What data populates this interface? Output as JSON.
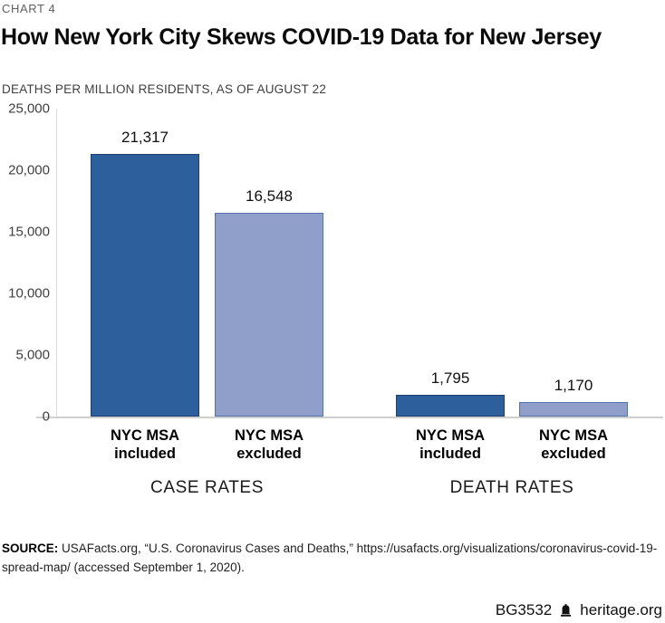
{
  "header": {
    "kicker": "CHART 4",
    "title": "How New York City Skews COVID-19 Data for New Jersey",
    "subtitle": "DEATHS PER MILLION RESIDENTS, AS OF AUGUST 22"
  },
  "chart_data": {
    "type": "bar",
    "title": "How New York City Skews COVID-19 Data for New Jersey",
    "subtitle": "DEATHS PER MILLION RESIDENTS, AS OF AUGUST 22",
    "ylim": [
      0,
      25000
    ],
    "grid": false,
    "legend": "none",
    "yticks": [
      {
        "value": 25000,
        "label": "25,000"
      },
      {
        "value": 20000,
        "label": "20,000"
      },
      {
        "value": 15000,
        "label": "15,000"
      },
      {
        "value": 10000,
        "label": "10,000"
      },
      {
        "value": 5000,
        "label": "5,000"
      },
      {
        "value": 0,
        "label": "0"
      }
    ],
    "colors": {
      "included": "#2e5f9d",
      "included_border": "#1d3f70",
      "excluded": "#8f9fc9",
      "excluded_border": "#5472ae"
    },
    "groups": [
      {
        "label": "CASE RATES",
        "bars": [
          {
            "series": "included",
            "label": "NYC MSA\nincluded",
            "value": 21317,
            "display": "21,317"
          },
          {
            "series": "excluded",
            "label": "NYC MSA\nexcluded",
            "value": 16548,
            "display": "16,548"
          }
        ]
      },
      {
        "label": "DEATH RATES",
        "bars": [
          {
            "series": "included",
            "label": "NYC MSA\nincluded",
            "value": 1795,
            "display": "1,795"
          },
          {
            "series": "excluded",
            "label": "NYC MSA\nexcluded",
            "value": 1170,
            "display": "1,170"
          }
        ]
      }
    ]
  },
  "source": {
    "label": "SOURCE:",
    "text": "USAFacts.org, “U.S. Coronavirus Cases and Deaths,” https://usafacts.org/visualizations/coronavirus-covid-19-spread-map/ (accessed September 1, 2020)."
  },
  "footer": {
    "doc_id": "BG3532",
    "site": "heritage.org"
  }
}
